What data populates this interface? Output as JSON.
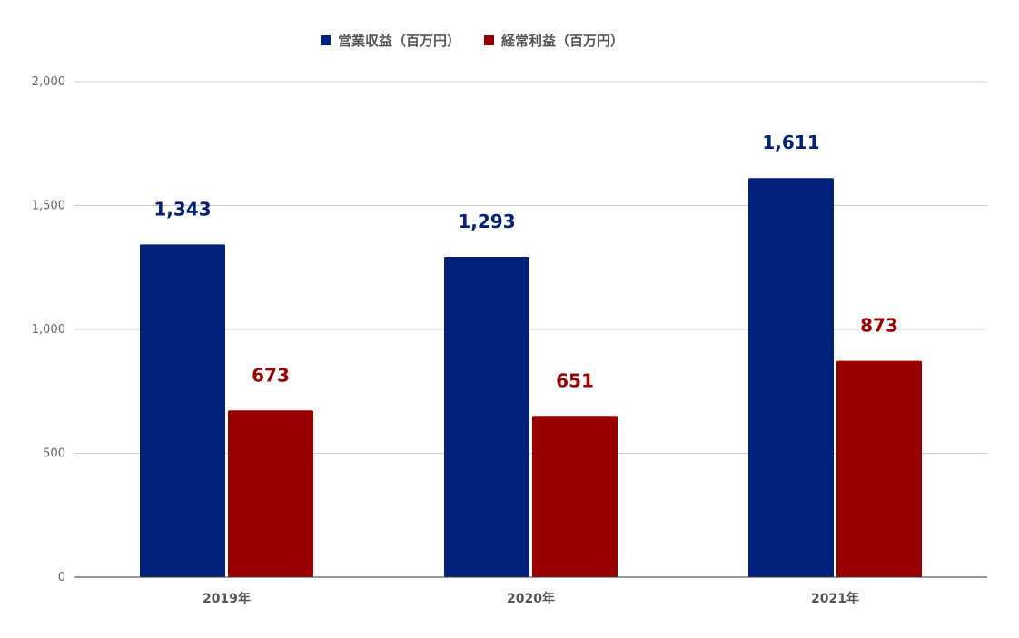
{
  "chart_data": {
    "type": "bar",
    "categories": [
      "2019年",
      "2020年",
      "2021年"
    ],
    "series": [
      {
        "name": "営業収益（百万円）",
        "values": [
          1343,
          1293,
          1611
        ],
        "labels": [
          "1,343",
          "1,293",
          "1,611"
        ],
        "color": "#002079"
      },
      {
        "name": "経常利益（百万円）",
        "values": [
          673,
          651,
          873
        ],
        "labels": [
          "673",
          "651",
          "873"
        ],
        "color": "#990000"
      }
    ],
    "title": "",
    "xlabel": "",
    "ylabel": "",
    "ylim": [
      0,
      2000
    ],
    "yticks": [
      0,
      500,
      1000,
      1500,
      2000
    ],
    "ytick_labels": [
      "0",
      "500",
      "1,000",
      "1,500",
      "2,000"
    ],
    "grid": true,
    "legend_position": "top-center",
    "gridline_color": "#cccccc",
    "axis_color": "#333333"
  }
}
